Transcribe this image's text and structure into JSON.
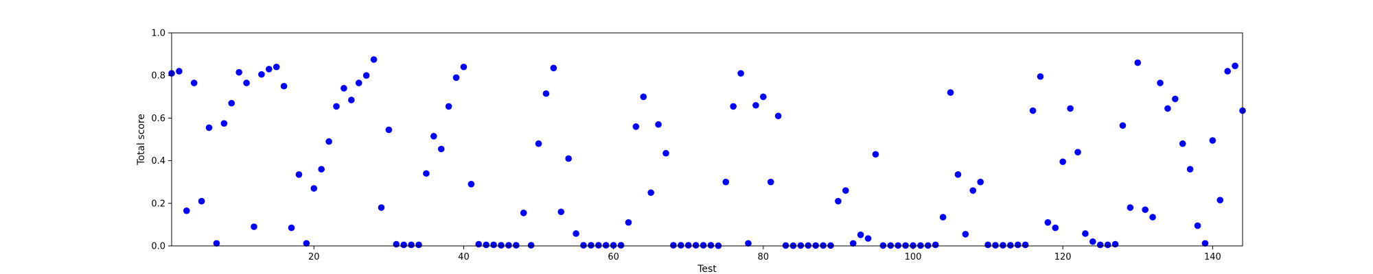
{
  "chart_data": {
    "type": "scatter",
    "xlabel": "Test",
    "ylabel": "Total score",
    "xlim": [
      1,
      144
    ],
    "ylim": [
      0.0,
      1.0
    ],
    "xticks": [
      20,
      40,
      60,
      80,
      100,
      120,
      140
    ],
    "xtick_labels": [
      "20",
      "40",
      "60",
      "80",
      "100",
      "120",
      "140"
    ],
    "yticks": [
      0.0,
      0.2,
      0.4,
      0.6,
      0.8,
      1.0
    ],
    "ytick_labels": [
      "0.0",
      "0.2",
      "0.4",
      "0.6",
      "0.8",
      "1.0"
    ],
    "grid": false,
    "marker_color": "#0000ff",
    "series": [
      {
        "x": [
          1,
          2,
          3,
          4,
          5,
          6,
          7,
          8,
          9,
          10,
          11,
          12,
          13,
          14,
          15,
          16,
          17,
          18,
          19,
          20,
          21,
          22,
          23,
          24,
          25,
          26,
          27,
          28,
          29,
          30,
          31,
          32,
          33,
          34,
          35,
          36,
          37,
          38,
          39,
          40,
          41,
          42,
          43,
          44,
          45,
          46,
          47,
          48,
          49,
          50,
          51,
          52,
          53,
          54,
          55,
          56,
          57,
          58,
          59,
          60,
          61,
          62,
          63,
          64,
          65,
          66,
          67,
          68,
          69,
          70,
          71,
          72,
          73,
          74,
          75,
          76,
          77,
          78,
          79,
          80,
          81,
          82,
          83,
          84,
          85,
          86,
          87,
          88,
          89,
          90,
          91,
          92,
          93,
          94,
          95,
          96,
          97,
          98,
          99,
          100,
          101,
          102,
          103,
          104,
          105,
          106,
          107,
          108,
          109,
          110,
          111,
          112,
          113,
          114,
          115,
          116,
          117,
          118,
          119,
          120,
          121,
          122,
          123,
          124,
          125,
          126,
          127,
          128,
          129,
          130,
          131,
          132,
          133,
          134,
          135,
          136,
          137,
          138,
          139,
          140,
          141,
          142,
          143,
          144
        ],
        "y": [
          0.81,
          0.82,
          0.165,
          0.765,
          0.21,
          0.555,
          0.012,
          0.575,
          0.67,
          0.815,
          0.765,
          0.09,
          0.805,
          0.83,
          0.84,
          0.75,
          0.085,
          0.335,
          0.012,
          0.27,
          0.36,
          0.49,
          0.655,
          0.74,
          0.685,
          0.765,
          0.8,
          0.875,
          0.18,
          0.545,
          0.008,
          0.005,
          0.005,
          0.005,
          0.34,
          0.515,
          0.455,
          0.655,
          0.79,
          0.84,
          0.29,
          0.008,
          0.005,
          0.005,
          0.003,
          0.003,
          0.003,
          0.155,
          0.003,
          0.48,
          0.715,
          0.835,
          0.16,
          0.41,
          0.058,
          0.003,
          0.003,
          0.003,
          0.003,
          0.003,
          0.003,
          0.11,
          0.56,
          0.7,
          0.25,
          0.57,
          0.435,
          0.003,
          0.003,
          0.003,
          0.003,
          0.003,
          0.003,
          0.001,
          0.3,
          0.655,
          0.81,
          0.012,
          0.66,
          0.7,
          0.3,
          0.61,
          0.002,
          0.001,
          0.002,
          0.002,
          0.002,
          0.002,
          0.002,
          0.21,
          0.26,
          0.012,
          0.052,
          0.035,
          0.43,
          0.002,
          0.002,
          0.002,
          0.002,
          0.002,
          0.002,
          0.002,
          0.005,
          0.135,
          0.72,
          0.335,
          0.055,
          0.26,
          0.3,
          0.005,
          0.003,
          0.003,
          0.003,
          0.005,
          0.005,
          0.635,
          0.795,
          0.11,
          0.085,
          0.395,
          0.645,
          0.44,
          0.058,
          0.02,
          0.005,
          0.005,
          0.008,
          0.565,
          0.18,
          0.86,
          0.17,
          0.135,
          0.765,
          0.645,
          0.69,
          0.48,
          0.36,
          0.095,
          0.012,
          0.495,
          0.215,
          0.82,
          0.845,
          0.635
        ]
      }
    ]
  }
}
